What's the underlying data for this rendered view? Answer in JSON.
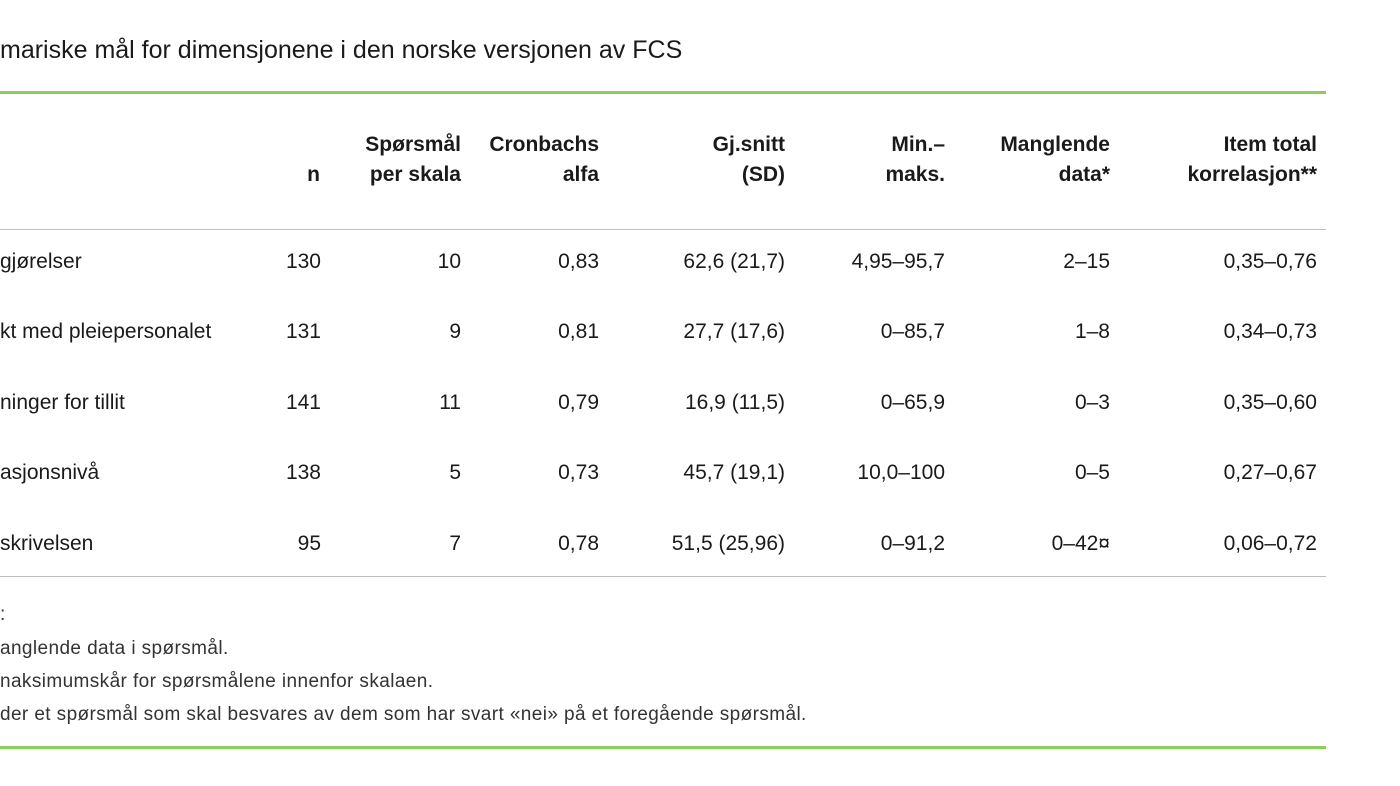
{
  "title": "mariske mål for dimensjonene i den norske versjonen av FCS",
  "colors": {
    "accent_rule": "#8dcf5f",
    "divider": "#bdbdbd"
  },
  "table": {
    "headers": {
      "n": [
        "n"
      ],
      "questions": [
        "Spørsmål",
        "per skala"
      ],
      "alpha": [
        "Cronbachs",
        "alfa"
      ],
      "mean": [
        "Gj.snitt",
        "(SD)"
      ],
      "minmax": [
        "Min.–",
        "maks."
      ],
      "missing": [
        "Manglende",
        "data*"
      ],
      "itemtotal": [
        "Item total",
        "korrelasjon**"
      ]
    },
    "rows": [
      {
        "label": "gjørelser",
        "n": "130",
        "questions": "10",
        "alpha": "0,83",
        "mean": "62,6 (21,7)",
        "minmax": "4,95–95,7",
        "missing": "2–15",
        "itemtotal": "0,35–0,76"
      },
      {
        "label": "kt med pleiepersonalet",
        "n": "131",
        "questions": "9",
        "alpha": "0,81",
        "mean": "27,7 (17,6)",
        "minmax": "0–85,7",
        "missing": "1–8",
        "itemtotal": "0,34–0,73"
      },
      {
        "label": "ninger for tillit",
        "n": "141",
        "questions": "11",
        "alpha": "0,79",
        "mean": "16,9 (11,5)",
        "minmax": "0–65,9",
        "missing": "0–3",
        "itemtotal": "0,35–0,60"
      },
      {
        "label": "asjonsnivå",
        "n": "138",
        "questions": "5",
        "alpha": "0,73",
        "mean": "45,7 (19,1)",
        "minmax": "10,0–100",
        "missing": "0–5",
        "itemtotal": "0,27–0,67"
      },
      {
        "label": "skrivelsen",
        "n": "95",
        "questions": "7",
        "alpha": "0,78",
        "mean": "51,5 (25,96)",
        "minmax": "0–91,2",
        "missing": "0–42¤",
        "itemtotal": "0,06–0,72"
      }
    ]
  },
  "notes": [
    ":",
    "anglende data i spørsmål.",
    "naksimumskår for spørsmålene innenfor skalaen.",
    "der et spørsmål som skal besvares av dem som har svart «nei» på et foregående spørsmål."
  ]
}
